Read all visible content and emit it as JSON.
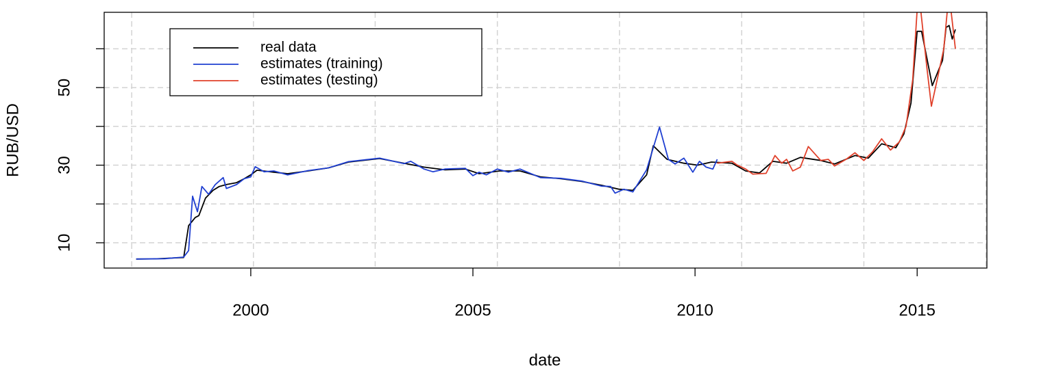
{
  "chart_data": {
    "type": "line",
    "xlabel": "date",
    "ylabel": "RUB/USD",
    "xlim": [
      1996.7,
      2016.57
    ],
    "ylim": [
      3.48,
      69.4
    ],
    "xticks": [
      2000,
      2005,
      2010,
      2015
    ],
    "yticks": [
      10,
      30,
      50
    ],
    "ygrid": [
      10,
      20,
      30,
      40,
      50,
      60
    ],
    "xgrid": [
      1997.32,
      2000.06,
      2002.8,
      2005.55,
      2008.3,
      2011.05,
      2013.8,
      2016.55
    ],
    "grid": true,
    "legend": "top-left",
    "series": [
      {
        "name": "real data",
        "color": "#000000",
        "x": [
          1997.42,
          1997.8,
          1998.06,
          1998.3,
          1998.49,
          1998.6,
          1998.75,
          1998.83,
          1998.98,
          1999.15,
          1999.29,
          1999.45,
          1999.68,
          1999.85,
          2000.0,
          2000.14,
          2000.52,
          2000.83,
          2001.29,
          2001.75,
          2002.2,
          2002.9,
          2003.45,
          2003.9,
          2004.37,
          2004.83,
          2005.14,
          2005.6,
          2006.06,
          2006.52,
          2006.98,
          2007.45,
          2007.9,
          2008.29,
          2008.6,
          2008.91,
          2009.06,
          2009.37,
          2009.75,
          2010.06,
          2010.37,
          2010.83,
          2011.14,
          2011.45,
          2011.75,
          2012.06,
          2012.37,
          2012.83,
          2013.14,
          2013.6,
          2013.9,
          2014.2,
          2014.52,
          2014.7,
          2014.86,
          2015.0,
          2015.1,
          2015.34,
          2015.57,
          2015.65,
          2015.72,
          2015.79,
          2015.86
        ],
        "values": [
          5.8,
          5.85,
          5.96,
          6.1,
          6.2,
          14.4,
          16.5,
          17,
          21.5,
          23.5,
          24.5,
          25,
          25.5,
          26.5,
          27.5,
          28.7,
          28.2,
          27.8,
          28.5,
          29.3,
          30.8,
          31.7,
          30.5,
          29.5,
          28.8,
          29.0,
          27.8,
          28.5,
          28.5,
          27.0,
          26.5,
          25.8,
          24.8,
          23.8,
          23.5,
          27.5,
          35,
          31.5,
          30.5,
          30.0,
          30.8,
          30.5,
          28.5,
          28.0,
          31.0,
          30.5,
          32.0,
          31.2,
          30.3,
          32.5,
          31.8,
          35.5,
          34.5,
          38,
          46,
          64.5,
          64.5,
          50.5,
          57,
          65.5,
          66,
          62.5,
          65
        ]
      },
      {
        "name": "estimates (training)",
        "color": "#1f3fd1",
        "x": [
          1997.42,
          1998.06,
          1998.49,
          1998.6,
          1998.69,
          1998.8,
          1998.9,
          1999.05,
          1999.2,
          1999.38,
          1999.45,
          1999.68,
          1999.85,
          2000.0,
          2000.1,
          2000.3,
          2000.52,
          2000.83,
          2001.29,
          2001.75,
          2002.2,
          2002.9,
          2003.45,
          2003.6,
          2003.9,
          2004.1,
          2004.37,
          2004.83,
          2005.0,
          2005.14,
          2005.3,
          2005.55,
          2005.8,
          2006.06,
          2006.52,
          2006.98,
          2007.45,
          2007.9,
          2008.1,
          2008.2,
          2008.4,
          2008.6,
          2008.91,
          2009.2,
          2009.4,
          2009.55,
          2009.75,
          2009.95,
          2010.1,
          2010.25,
          2010.4,
          2010.5
        ],
        "values": [
          5.8,
          5.9,
          6.3,
          8,
          22,
          18,
          24.5,
          22.5,
          25,
          26.8,
          24,
          25,
          26.5,
          27,
          29.6,
          28.3,
          28.5,
          27.5,
          28.6,
          29.3,
          30.9,
          31.8,
          30.4,
          31,
          29,
          28.3,
          29,
          29.2,
          27.3,
          28.2,
          27.5,
          29,
          28.2,
          29,
          26.8,
          26.6,
          25.9,
          24.6,
          24.5,
          22.8,
          23.8,
          23.1,
          28.8,
          39.8,
          31.5,
          30.3,
          31.8,
          28.2,
          31,
          29.5,
          29,
          31.5
        ]
      },
      {
        "name": "estimates (testing)",
        "color": "#e0402a",
        "x": [
          2010.5,
          2010.83,
          2010.95,
          2011.14,
          2011.3,
          2011.6,
          2011.8,
          2011.95,
          2012.06,
          2012.2,
          2012.37,
          2012.55,
          2012.83,
          2013.0,
          2013.14,
          2013.4,
          2013.6,
          2013.8,
          2014.0,
          2014.2,
          2014.4,
          2014.6,
          2014.75,
          2014.9,
          2015.0,
          2015.08,
          2015.22,
          2015.32,
          2015.45,
          2015.6,
          2015.68,
          2015.76,
          2015.86
        ],
        "values": [
          30.5,
          31,
          30,
          29,
          27.7,
          27.9,
          32.5,
          30.5,
          31.5,
          28.5,
          29.5,
          34.8,
          31.2,
          31.5,
          29.8,
          31.5,
          33.2,
          31.2,
          33.5,
          36.8,
          33.9,
          36,
          40,
          52,
          70,
          70,
          55,
          45.2,
          52,
          60,
          70,
          70,
          60
        ]
      }
    ]
  }
}
